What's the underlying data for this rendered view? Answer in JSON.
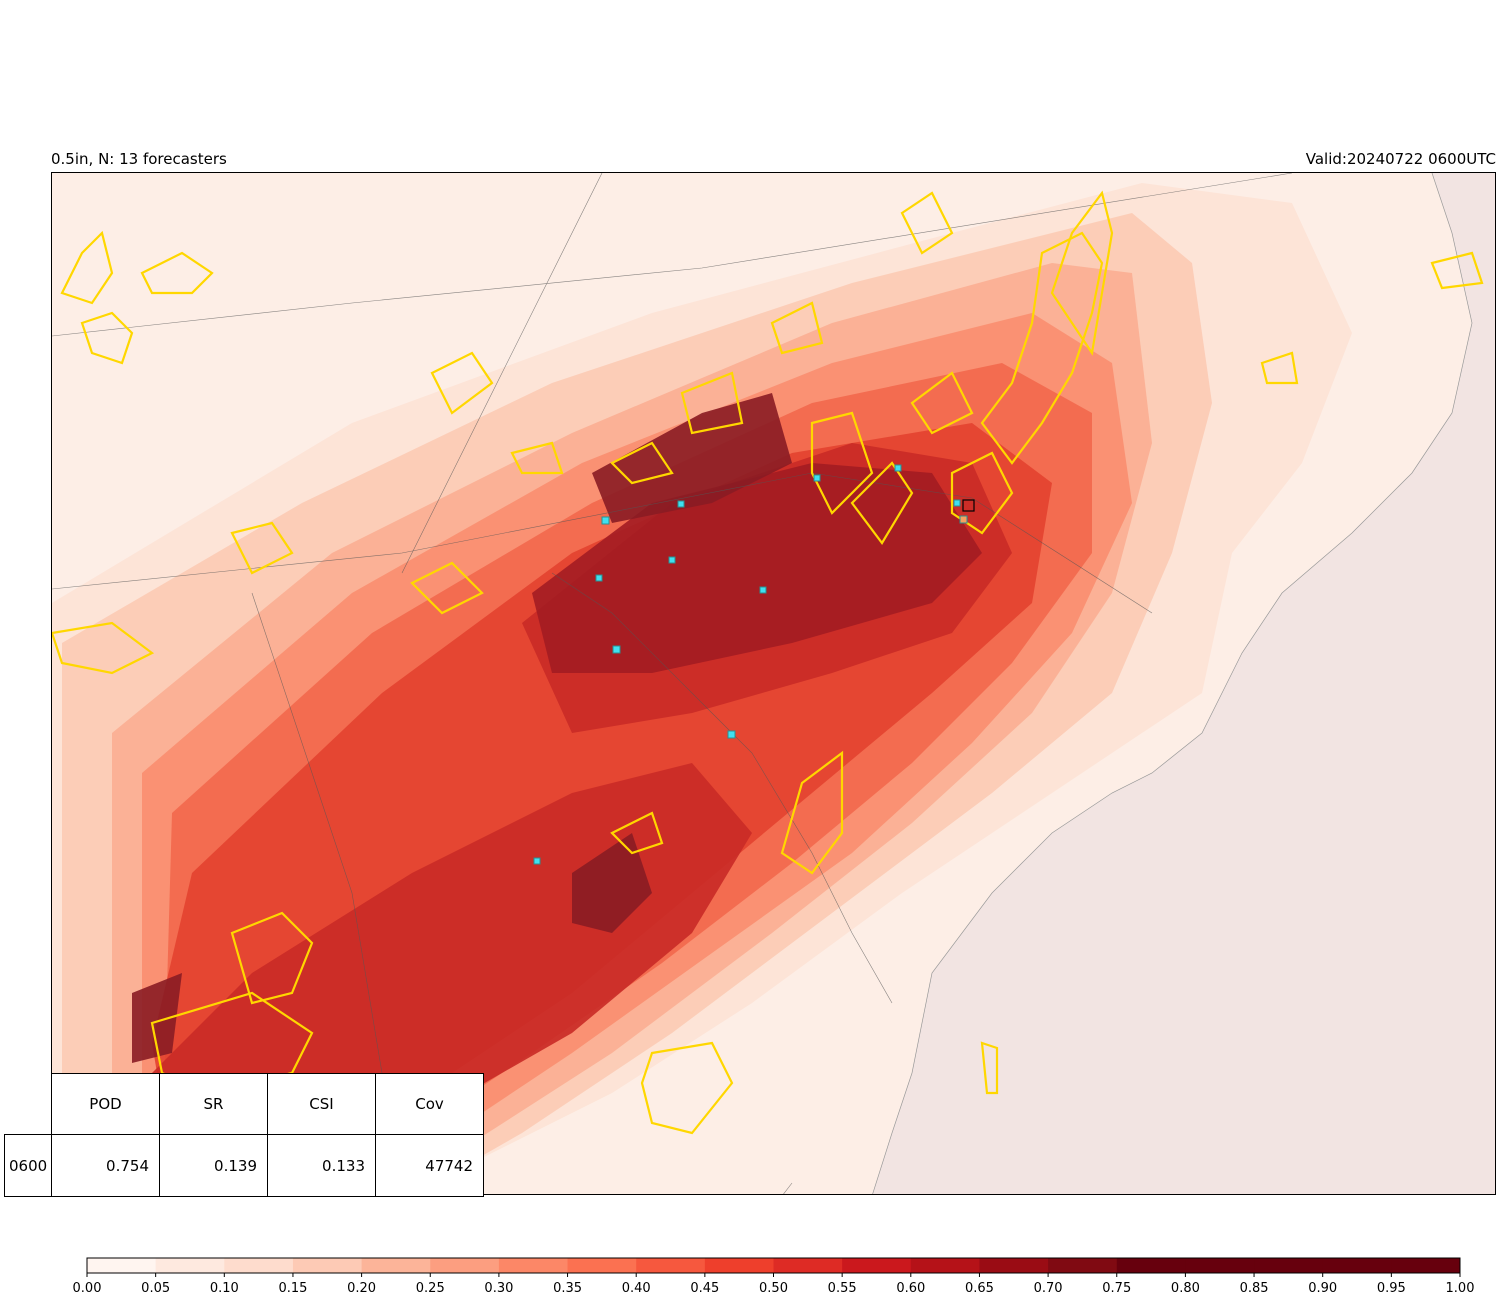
{
  "header": {
    "title_left": "0.5in, N: 13 forecasters",
    "title_right": "Valid:20240722 0600UTC"
  },
  "stats_table": {
    "columns": [
      "POD",
      "SR",
      "CSI",
      "Cov"
    ],
    "row_label": "0600",
    "values": [
      "0.754",
      "0.139",
      "0.133",
      "47742"
    ]
  },
  "colorbar": {
    "min": 0.0,
    "max": 1.0,
    "step": 0.05,
    "tick_labels": [
      "0.00",
      "0.05",
      "0.10",
      "0.15",
      "0.20",
      "0.25",
      "0.30",
      "0.35",
      "0.40",
      "0.45",
      "0.50",
      "0.55",
      "0.60",
      "0.65",
      "0.70",
      "0.75",
      "0.80",
      "0.85",
      "0.90",
      "0.95",
      "1.00"
    ],
    "colors": [
      "#fff5f0",
      "#fee9df",
      "#fedccd",
      "#fdcab5",
      "#fcb499",
      "#fc9e80",
      "#fc8767",
      "#fb7151",
      "#f6583e",
      "#ee3f2c",
      "#de2b25",
      "#cb181d",
      "#b51218",
      "#9a0c14",
      "#800a12",
      "#67000d",
      "#67000d",
      "#67000d",
      "#67000d",
      "#67000d"
    ]
  },
  "map": {
    "ocean_color": "#f3e5e3",
    "land_color": "#fdeee6",
    "observed_outline_color": "#ffd700",
    "station_marker_color": "#40e0f0"
  }
}
